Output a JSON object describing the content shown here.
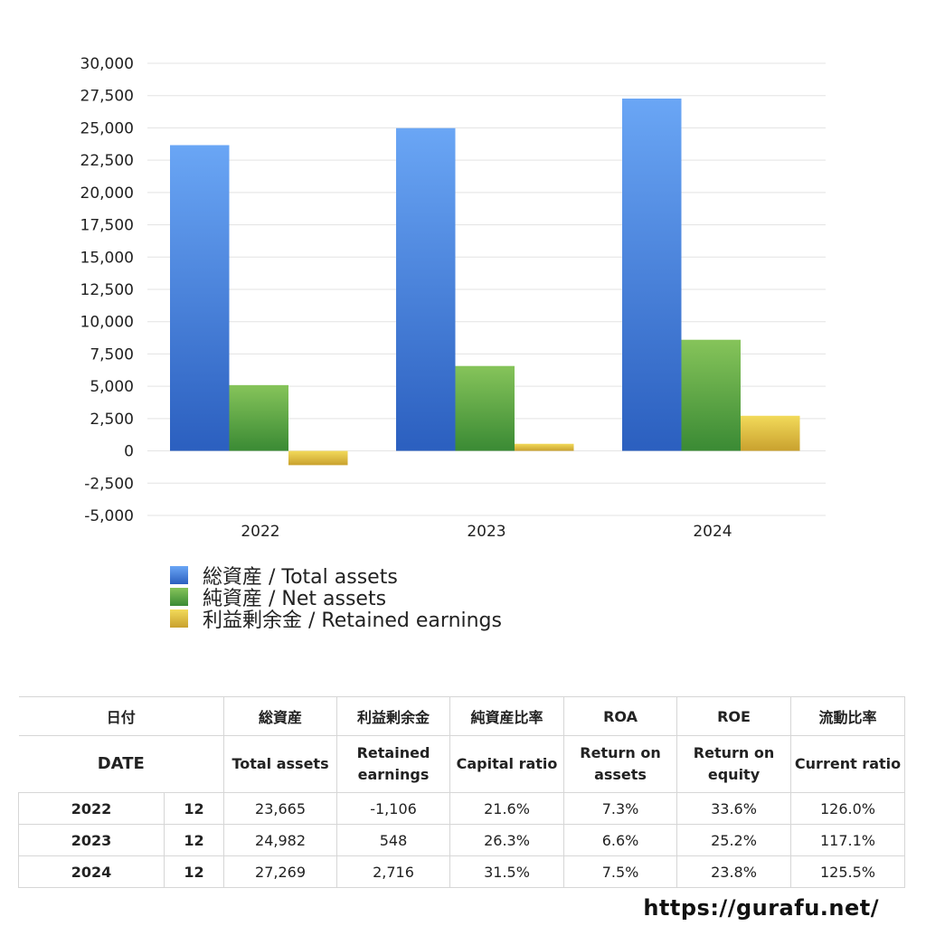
{
  "chart_data": {
    "type": "bar",
    "categories": [
      "2022",
      "2023",
      "2024"
    ],
    "series": [
      {
        "name": "総資産 / Total assets",
        "values": [
          23665,
          24982,
          27269
        ],
        "color_top": "#6aa6f5",
        "color_bottom": "#2b5fbf"
      },
      {
        "name": "純資産 / Net assets",
        "values": [
          5090,
          6570,
          8600
        ],
        "color_top": "#86c45a",
        "color_bottom": "#3a8a34"
      },
      {
        "name": "利益剰余金 / Retained earnings",
        "values": [
          -1106,
          548,
          2716
        ],
        "color_top": "#f2da5a",
        "color_bottom": "#c9a12e"
      }
    ],
    "ylim": [
      -5000,
      30000
    ],
    "yticks": [
      "30,000",
      "27,500",
      "25,000",
      "22,500",
      "20,000",
      "17,500",
      "15,000",
      "12,500",
      "10,000",
      "7,500",
      "5,000",
      "2,500",
      "0",
      "-2,500",
      "-5,000"
    ],
    "ytick_values": [
      30000,
      27500,
      25000,
      22500,
      20000,
      17500,
      15000,
      12500,
      10000,
      7500,
      5000,
      2500,
      0,
      -2500,
      -5000
    ],
    "grid": true,
    "legend_position": "bottom-left"
  },
  "table": {
    "header_jp": {
      "date": "日付",
      "total_assets": "総資産",
      "retained": "利益剰余金",
      "capital_ratio": "純資産比率",
      "roa": "ROA",
      "roe": "ROE",
      "current_ratio": "流動比率"
    },
    "header_en": {
      "date": "DATE",
      "total_assets": "Total assets",
      "retained_1": "Retained",
      "retained_2": "earnings",
      "capital_ratio": "Capital ratio",
      "roa_1": "Return on",
      "roa_2": "assets",
      "roe_1": "Return on",
      "roe_2": "equity",
      "current_ratio": "Current ratio"
    },
    "rows": [
      {
        "year": "2022",
        "month": "12",
        "total_assets": "23,665",
        "retained": "-1,106",
        "capital_ratio": "21.6%",
        "roa": "7.3%",
        "roe": "33.6%",
        "current_ratio": "126.0%"
      },
      {
        "year": "2023",
        "month": "12",
        "total_assets": "24,982",
        "retained": "548",
        "capital_ratio": "26.3%",
        "roa": "6.6%",
        "roe": "25.2%",
        "current_ratio": "117.1%"
      },
      {
        "year": "2024",
        "month": "12",
        "total_assets": "27,269",
        "retained": "2,716",
        "capital_ratio": "31.5%",
        "roa": "7.5%",
        "roe": "23.8%",
        "current_ratio": "125.5%"
      }
    ],
    "negative_color": "#d9412b"
  },
  "site_url": "https://gurafu.net/"
}
